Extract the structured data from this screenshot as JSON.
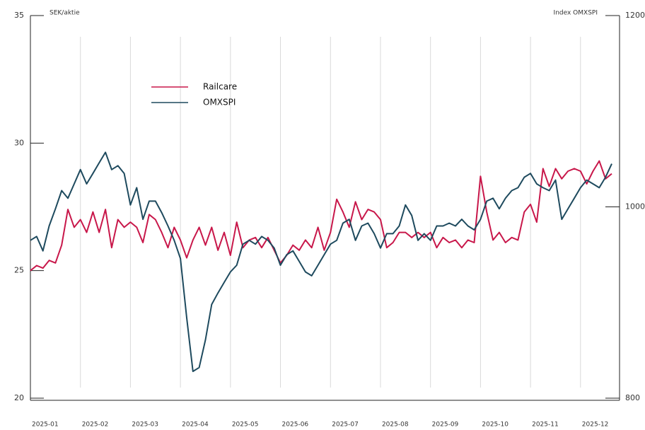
{
  "chart_data": {
    "type": "line",
    "ylabel": "SEK/aktie",
    "y2label": "Index OMXSPI",
    "categories": [
      "2025-01",
      null,
      null,
      null,
      null,
      null,
      null,
      null,
      "2025-02",
      null,
      null,
      null,
      null,
      null,
      null,
      null,
      "2025-03",
      null,
      null,
      null,
      null,
      null,
      null,
      null,
      "2025-04",
      null,
      null,
      null,
      null,
      null,
      null,
      null,
      "2025-05",
      null,
      null,
      null,
      null,
      null,
      null,
      null,
      "2025-06",
      null,
      null,
      null,
      null,
      null,
      null,
      null,
      "2025-07",
      null,
      null,
      null,
      null,
      null,
      null,
      null,
      "2025-08",
      null,
      null,
      null,
      null,
      null,
      null,
      null,
      "2025-09",
      null,
      null,
      null,
      null,
      null,
      null,
      null,
      "2025-10",
      null,
      null,
      null,
      null,
      null,
      null,
      null,
      "2025-11",
      null,
      null,
      null,
      null,
      null,
      null,
      null,
      "2025-12",
      null,
      null,
      null,
      null,
      null
    ],
    "series": [
      {
        "name": "Railcare",
        "color": "#c8174a",
        "axis": "y",
        "values": [
          25.0,
          25.2,
          25.1,
          25.4,
          25.3,
          26.0,
          27.4,
          26.7,
          27.0,
          26.5,
          27.3,
          26.5,
          27.4,
          25.9,
          27.0,
          26.7,
          26.9,
          26.7,
          26.1,
          27.2,
          27.0,
          26.5,
          25.9,
          26.7,
          26.2,
          25.5,
          26.2,
          26.7,
          26.0,
          26.7,
          25.8,
          26.5,
          25.6,
          26.9,
          25.9,
          26.2,
          26.3,
          25.9,
          26.3,
          25.8,
          25.3,
          25.6,
          26.0,
          25.8,
          26.2,
          25.9,
          26.7,
          25.8,
          26.5,
          27.8,
          27.3,
          26.7,
          27.7,
          27.0,
          27.4,
          27.3,
          27.0,
          25.9,
          26.1,
          26.5,
          26.5,
          26.3,
          26.5,
          26.3,
          26.5,
          25.9,
          26.3,
          26.1,
          26.2,
          25.9,
          26.2,
          26.1,
          28.7,
          27.3,
          26.2,
          26.5,
          26.1,
          26.3,
          26.2,
          27.3,
          27.6,
          26.9,
          29.0,
          28.3,
          29.0,
          28.6,
          28.9,
          29.0,
          28.9,
          28.4,
          28.9,
          29.3,
          28.6,
          28.8
        ]
      },
      {
        "name": "OMXSPI",
        "color": "#1e4a5e",
        "axis": "y2",
        "values": [
          965,
          969,
          954,
          980,
          998,
          1017,
          1009,
          1024,
          1039,
          1024,
          1035,
          1046,
          1057,
          1039,
          1043,
          1035,
          1002,
          1020,
          987,
          1006,
          1006,
          994,
          980,
          965,
          946,
          884,
          828,
          832,
          861,
          898,
          910,
          921,
          932,
          939,
          961,
          965,
          961,
          969,
          965,
          957,
          939,
          950,
          954,
          943,
          932,
          928,
          939,
          950,
          961,
          965,
          983,
          987,
          965,
          980,
          983,
          972,
          957,
          972,
          972,
          980,
          1002,
          991,
          965,
          972,
          965,
          980,
          980,
          983,
          980,
          987,
          980,
          976,
          987,
          1006,
          1009,
          998,
          1009,
          1017,
          1020,
          1031,
          1035,
          1024,
          1020,
          1017,
          1028,
          987,
          998,
          1009,
          1020,
          1028,
          1024,
          1020,
          1031,
          1045
        ]
      }
    ],
    "ylim": [
      20,
      35
    ],
    "yticks": [
      20,
      25,
      30,
      35
    ],
    "y2lim": [
      800,
      1200
    ],
    "y2ticks": [
      800,
      1000,
      1200
    ]
  }
}
